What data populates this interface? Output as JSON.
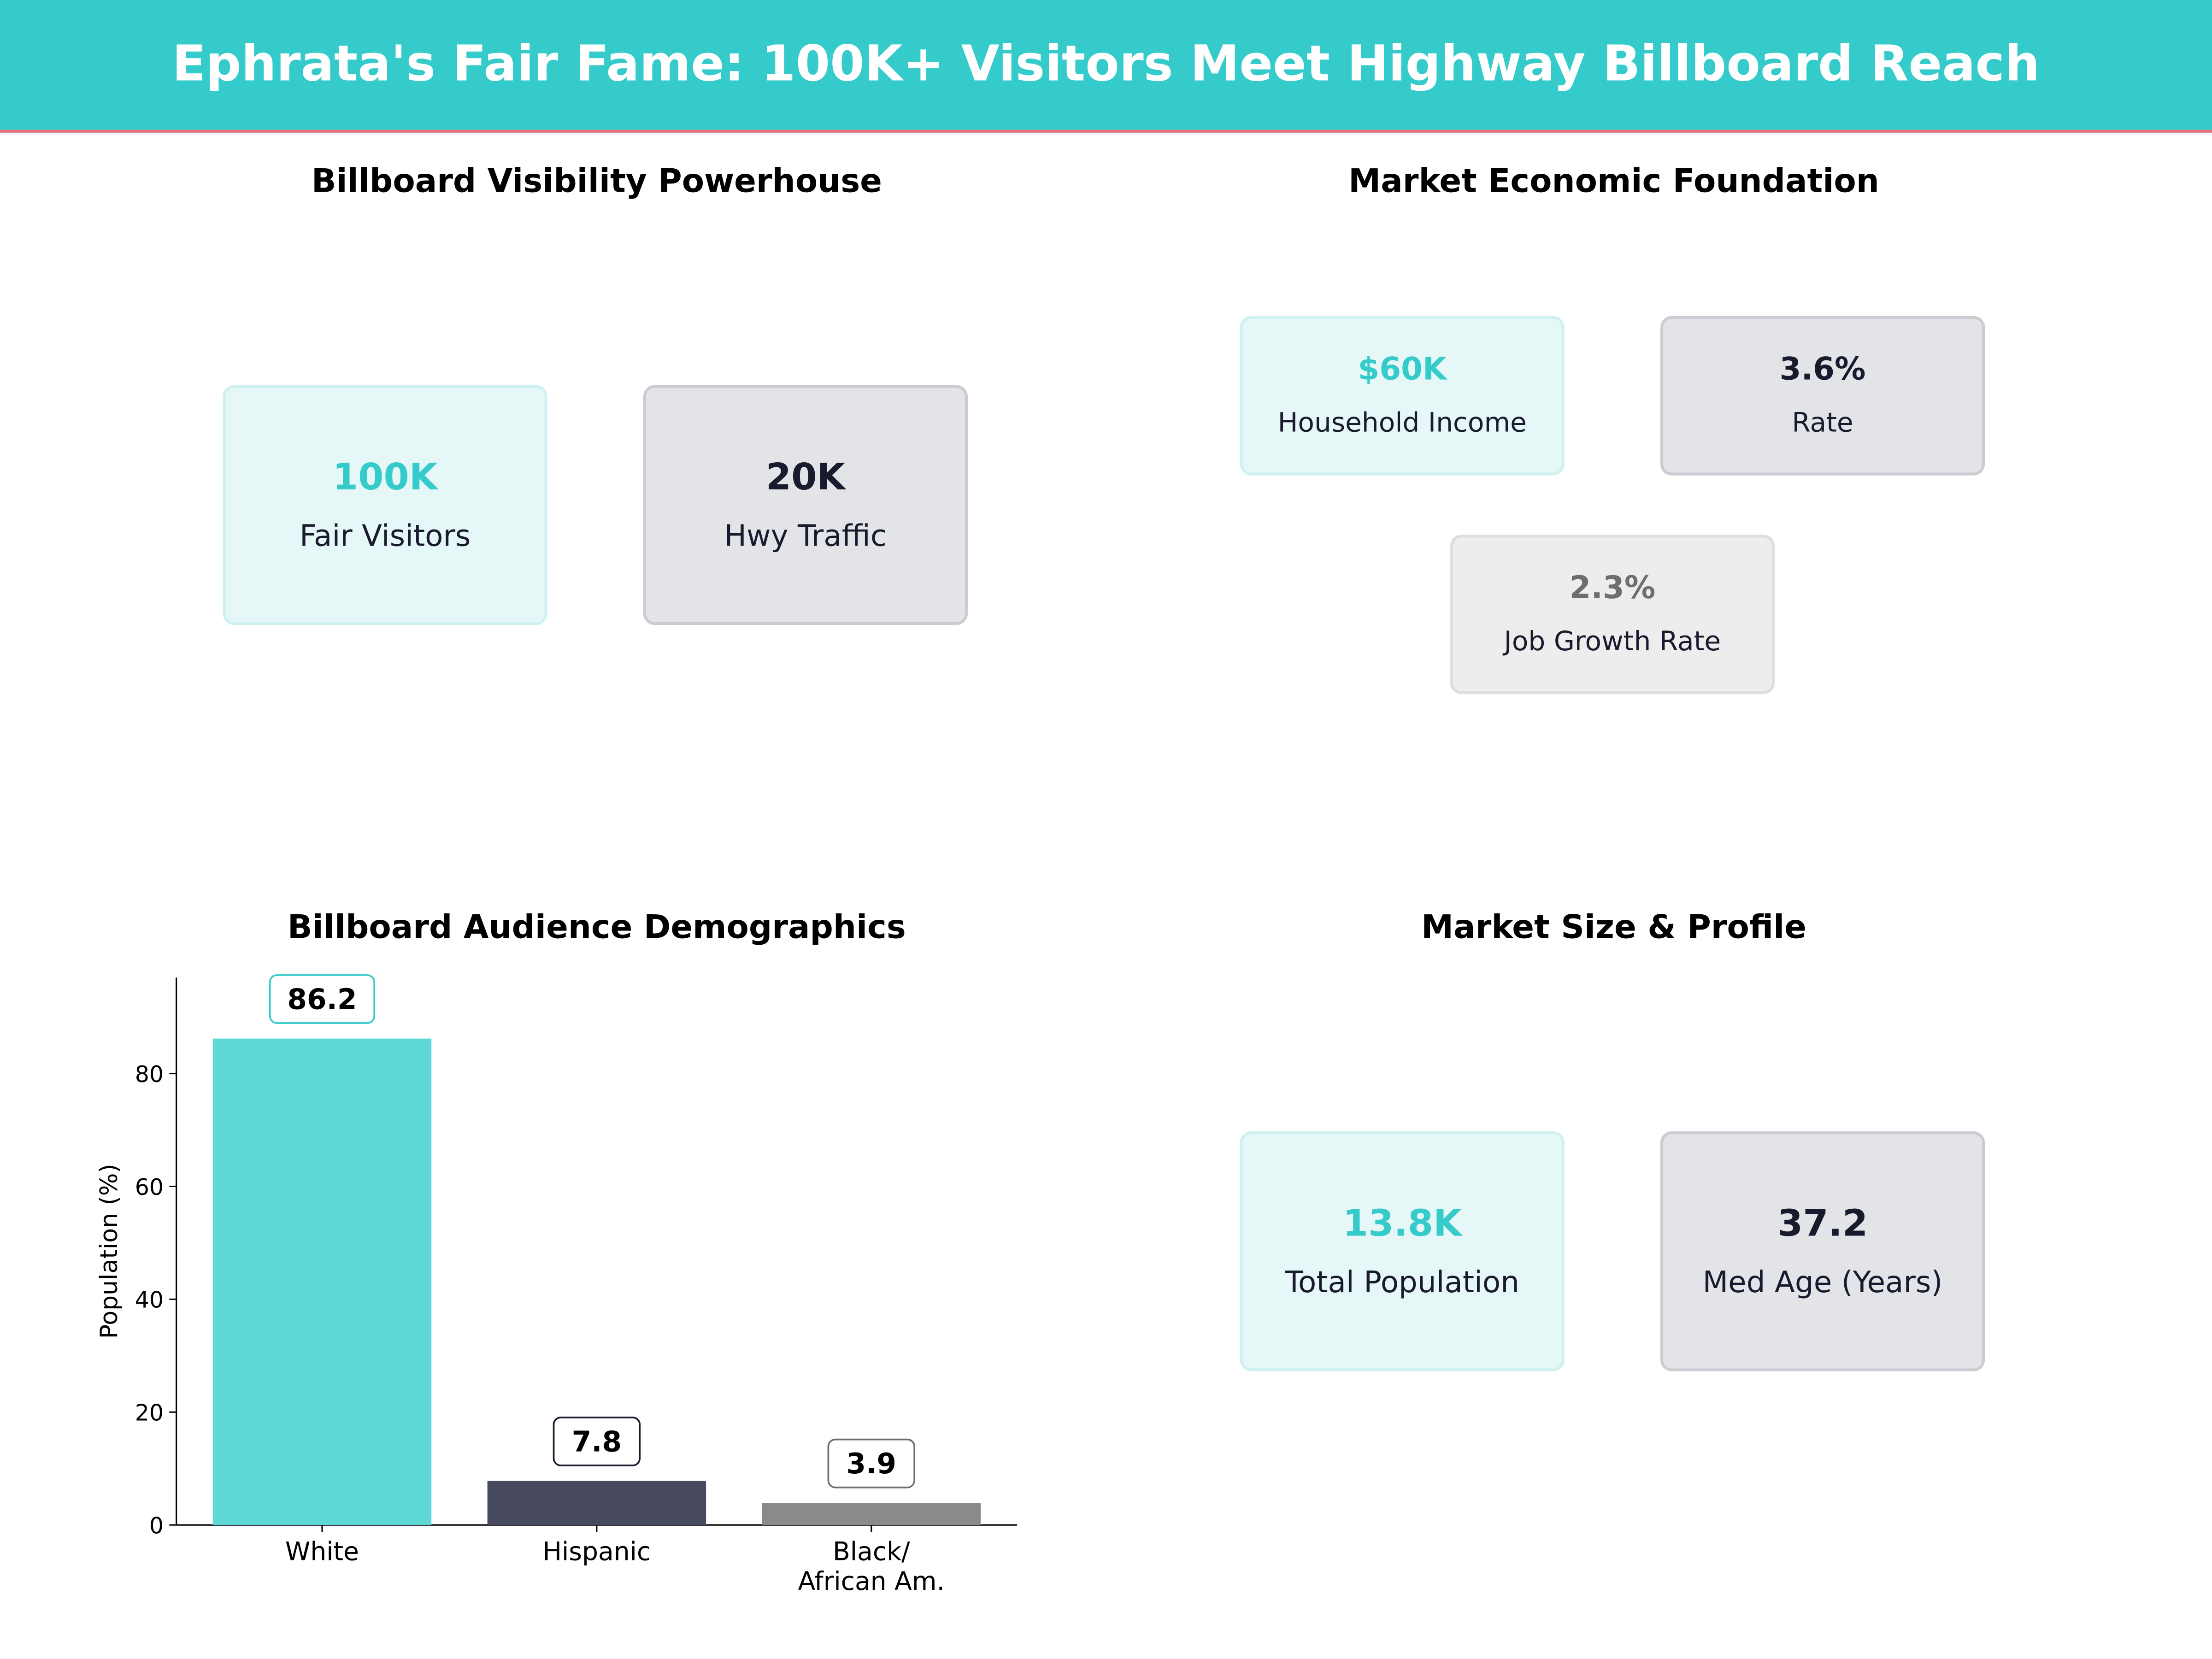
{
  "header": {
    "title": "Ephrata's Fair Fame: 100K+ Visitors Meet Highway Billboard Reach"
  },
  "colors": {
    "accent": "#36cbcb",
    "navy": "#1a1a2e",
    "gray": "#6e6e6e",
    "header_rule": "#e8707a"
  },
  "visibility": {
    "title": "Billboard Visibility Powerhouse",
    "cards": [
      {
        "value": "100K",
        "label": "Fair Visitors"
      },
      {
        "value": "20K",
        "label": "Hwy Traffic"
      }
    ]
  },
  "economic": {
    "title": "Market Economic Foundation",
    "cards": [
      {
        "value": "$60K",
        "label": "Household Income"
      },
      {
        "value": "3.6%",
        "label": "Rate"
      },
      {
        "value": "2.3%",
        "label": "Job Growth Rate"
      }
    ]
  },
  "profile": {
    "title": "Market Size & Profile",
    "cards": [
      {
        "value": "13.8K",
        "label": "Total Population"
      },
      {
        "value": "37.2",
        "label": "Med Age (Years)"
      }
    ]
  },
  "chart_data": {
    "type": "bar",
    "title": "Billboard Audience Demographics",
    "categories": [
      "White",
      "Hispanic",
      "Black/\nAfrican Am."
    ],
    "values": [
      86.2,
      7.8,
      3.9
    ],
    "value_labels": [
      "86.2",
      "7.8",
      "3.9"
    ],
    "colors": [
      "#5dd8d6",
      "#474a5f",
      "#8a8a8a"
    ],
    "label_border_colors": [
      "#36cbcb",
      "#1a1a2e",
      "#6e6e6e"
    ],
    "xlabel": "",
    "ylabel": "Population (%)",
    "ylim": [
      0,
      97
    ],
    "yticks": [
      0,
      20,
      40,
      60,
      80
    ],
    "grid": false
  }
}
